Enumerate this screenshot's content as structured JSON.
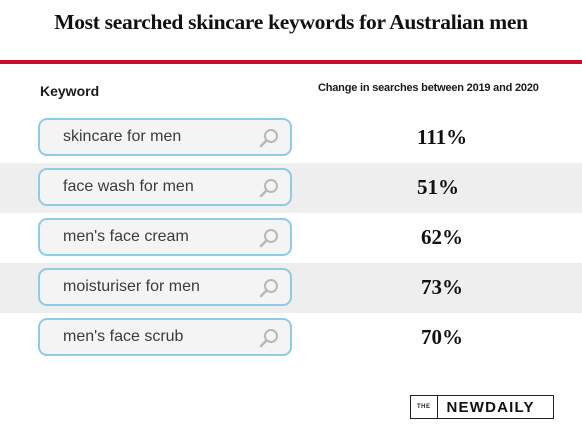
{
  "title": "Most searched skincare keywords for Australian men",
  "columns": {
    "keyword": "Keyword",
    "change": "Change in searches between 2019 and 2020"
  },
  "brand": {
    "the": "THE",
    "name": "NEWDAILY"
  },
  "icons": {
    "search": "magnifier-icon"
  },
  "colors": {
    "accent_rule": "#c8102e",
    "search_border": "#8ecbe6",
    "row_shade": "#eeeeee"
  },
  "chart_data": {
    "type": "table",
    "title": "Most searched skincare keywords for Australian men",
    "columns": [
      "Keyword",
      "Change in searches between 2019 and 2020"
    ],
    "rows": [
      {
        "keyword": "skincare for men",
        "change": "111%",
        "value": 111
      },
      {
        "keyword": "face wash for men",
        "change": "51%",
        "value": 51
      },
      {
        "keyword": "men's face cream",
        "change": "62%",
        "value": 62
      },
      {
        "keyword": "moisturiser for men",
        "change": "73%",
        "value": 73
      },
      {
        "keyword": "men's face scrub",
        "change": "70%",
        "value": 70
      }
    ]
  }
}
